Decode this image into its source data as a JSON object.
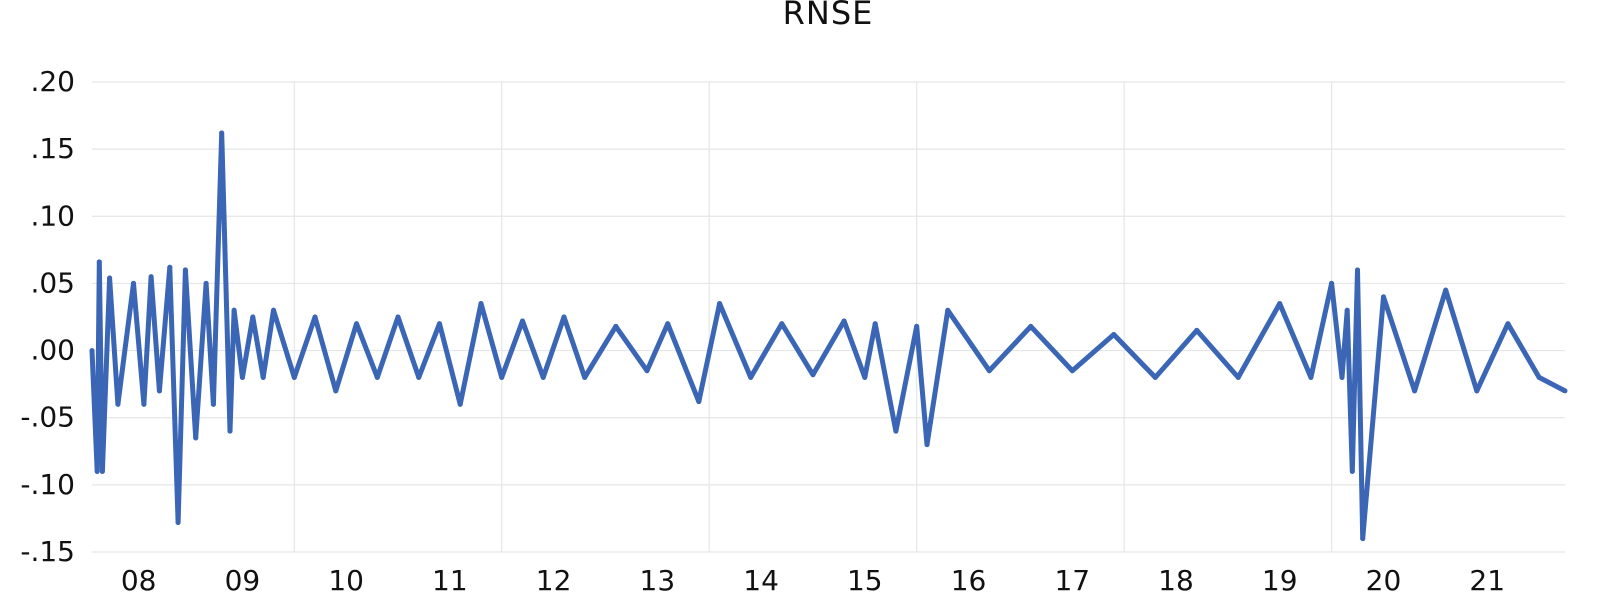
{
  "chart_data": {
    "type": "line",
    "title": "RNSE",
    "xlabel": "",
    "ylabel": "",
    "x_range": [
      2007.55,
      2021.75
    ],
    "ylim": [
      -0.15,
      0.2
    ],
    "y_ticks": [
      0.2,
      0.15,
      0.1,
      0.05,
      0.0,
      -0.05,
      -0.1,
      -0.15
    ],
    "y_tick_labels": [
      ".20",
      ".15",
      ".10",
      ".05",
      ".00",
      "-.05",
      "-.10",
      "-.15"
    ],
    "x_ticks": [
      2008,
      2009,
      2010,
      2011,
      2012,
      2013,
      2014,
      2015,
      2016,
      2017,
      2018,
      2019,
      2020,
      2021
    ],
    "x_tick_labels": [
      "08",
      "09",
      "10",
      "11",
      "12",
      "13",
      "14",
      "15",
      "16",
      "17",
      "18",
      "19",
      "20",
      "21"
    ],
    "vertical_gridlines_at": [
      2009.5,
      2011.5,
      2013.5,
      2015.5,
      2017.5,
      2019.5
    ],
    "grid": true,
    "line_color": "#3a66b5",
    "series": [
      {
        "name": "",
        "x": [
          2007.55,
          2007.6,
          2007.62,
          2007.65,
          2007.72,
          2007.8,
          2007.95,
          2008.05,
          2008.12,
          2008.2,
          2008.3,
          2008.38,
          2008.45,
          2008.55,
          2008.65,
          2008.72,
          2008.8,
          2008.88,
          2008.92,
          2009.0,
          2009.1,
          2009.2,
          2009.3,
          2009.5,
          2009.7,
          2009.9,
          2010.1,
          2010.3,
          2010.5,
          2010.7,
          2010.9,
          2011.1,
          2011.3,
          2011.5,
          2011.7,
          2011.9,
          2012.1,
          2012.3,
          2012.6,
          2012.9,
          2013.1,
          2013.4,
          2013.6,
          2013.9,
          2014.2,
          2014.5,
          2014.8,
          2015.0,
          2015.1,
          2015.3,
          2015.5,
          2015.6,
          2015.8,
          2016.2,
          2016.6,
          2017.0,
          2017.4,
          2017.8,
          2018.2,
          2018.6,
          2019.0,
          2019.3,
          2019.5,
          2019.6,
          2019.65,
          2019.7,
          2019.75,
          2019.8,
          2020.0,
          2020.3,
          2020.6,
          2020.9,
          2021.2,
          2021.5,
          2021.75
        ],
        "y": [
          0.0,
          -0.09,
          0.066,
          -0.09,
          0.054,
          -0.04,
          0.05,
          -0.04,
          0.055,
          -0.03,
          0.062,
          -0.128,
          0.06,
          -0.065,
          0.05,
          -0.04,
          0.162,
          -0.06,
          0.03,
          -0.02,
          0.025,
          -0.02,
          0.03,
          -0.02,
          0.025,
          -0.03,
          0.02,
          -0.02,
          0.025,
          -0.02,
          0.02,
          -0.04,
          0.035,
          -0.02,
          0.022,
          -0.02,
          0.025,
          -0.02,
          0.018,
          -0.015,
          0.02,
          -0.038,
          0.035,
          -0.02,
          0.02,
          -0.018,
          0.022,
          -0.02,
          0.02,
          -0.06,
          0.018,
          -0.07,
          0.03,
          -0.015,
          0.018,
          -0.015,
          0.012,
          -0.02,
          0.015,
          -0.02,
          0.035,
          -0.02,
          0.05,
          -0.02,
          0.03,
          -0.09,
          0.06,
          -0.14,
          0.04,
          -0.03,
          0.045,
          -0.03,
          0.02,
          -0.02,
          -0.03
        ]
      }
    ]
  }
}
